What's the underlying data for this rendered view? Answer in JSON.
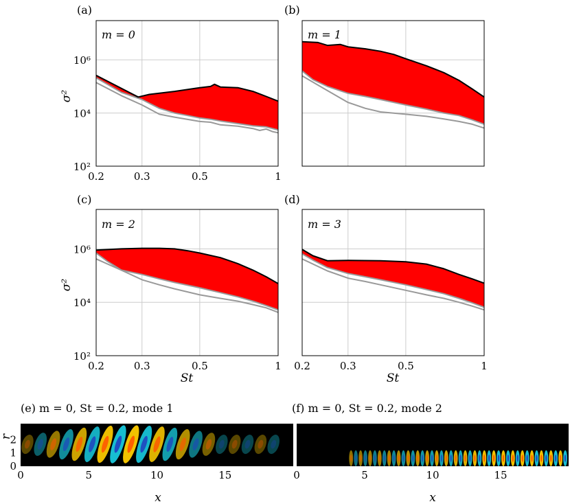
{
  "figure": {
    "y_axis_label": "σ²",
    "x_axis_label": "St",
    "x_ticks": [
      "0.2",
      "0.3",
      "0.5",
      "1"
    ],
    "y_ticks": [
      "10⁶",
      "10⁴",
      "10²"
    ]
  },
  "chart_data": [
    {
      "type": "area",
      "panel": "(a)",
      "label": "m = 0",
      "x_scale": "log",
      "y_scale": "log",
      "xlim": [
        0.2,
        1.0
      ],
      "ylim": [
        100,
        30000000
      ],
      "x_ticks": [
        0.2,
        0.3,
        0.5,
        1
      ],
      "y_ticks": [
        100,
        10000,
        1000000
      ],
      "xlabel": "",
      "ylabel": "σ²",
      "colors": {
        "fill": "#ff0000",
        "upper": "#000000",
        "lower": "#999999"
      },
      "upper": {
        "x": [
          0.2,
          0.29,
          0.32,
          0.4,
          0.5,
          0.55,
          0.57,
          0.6,
          0.7,
          0.8,
          0.9,
          1.0
        ],
        "y": [
          260000,
          40000,
          50000,
          65000,
          90000,
          100000,
          120000,
          95000,
          90000,
          65000,
          42000,
          28000
        ]
      },
      "lower": {
        "x": [
          0.2,
          0.25,
          0.3,
          0.35,
          0.4,
          0.45,
          0.5,
          0.55,
          0.6,
          0.7,
          0.8,
          0.9,
          1.0
        ],
        "y": [
          210000,
          60000,
          32000,
          15000,
          10000,
          8000,
          6500,
          5800,
          5000,
          4000,
          3300,
          3000,
          2300
        ]
      },
      "gray2": {
        "x": [
          0.2,
          0.25,
          0.3,
          0.35,
          0.4,
          0.5,
          0.55,
          0.6,
          0.7,
          0.8,
          0.85,
          0.9,
          0.95,
          1.0
        ],
        "y": [
          140000,
          45000,
          20000,
          9000,
          7000,
          4800,
          4500,
          3600,
          3200,
          2600,
          2200,
          2500,
          2000,
          1800
        ]
      }
    },
    {
      "type": "area",
      "panel": "(b)",
      "label": "m = 1",
      "x_scale": "log",
      "y_scale": "log",
      "xlim": [
        0.2,
        1.0
      ],
      "ylim": [
        100,
        30000000
      ],
      "x_ticks": [
        0.2,
        0.3,
        0.5,
        1
      ],
      "y_ticks": [
        100,
        10000,
        1000000
      ],
      "xlabel": "",
      "ylabel": "",
      "colors": {
        "fill": "#ff0000",
        "upper": "#000000",
        "lower": "#999999"
      },
      "upper": {
        "x": [
          0.2,
          0.23,
          0.25,
          0.28,
          0.3,
          0.35,
          0.4,
          0.45,
          0.5,
          0.6,
          0.7,
          0.8,
          0.9,
          1.0
        ],
        "y": [
          4800000,
          4500000,
          3500000,
          3800000,
          3100000,
          2600000,
          2100000,
          1600000,
          1100000,
          600000,
          330000,
          170000,
          80000,
          40000
        ]
      },
      "lower": {
        "x": [
          0.2,
          0.22,
          0.25,
          0.3,
          0.35,
          0.4,
          0.5,
          0.6,
          0.7,
          0.8,
          0.9,
          1.0
        ],
        "y": [
          380000,
          180000,
          100000,
          55000,
          42000,
          32000,
          20000,
          14000,
          10000,
          8000,
          5500,
          3800
        ]
      },
      "gray2": {
        "x": [
          0.2,
          0.25,
          0.3,
          0.35,
          0.4,
          0.5,
          0.6,
          0.7,
          0.8,
          0.9,
          1.0
        ],
        "y": [
          250000,
          70000,
          25000,
          15000,
          11000,
          9000,
          7500,
          6000,
          4800,
          3800,
          2700
        ]
      }
    },
    {
      "type": "area",
      "panel": "(c)",
      "label": "m = 2",
      "x_scale": "log",
      "y_scale": "log",
      "xlim": [
        0.2,
        1.0
      ],
      "ylim": [
        100,
        30000000
      ],
      "x_ticks": [
        0.2,
        0.3,
        0.5,
        1
      ],
      "y_ticks": [
        100,
        10000,
        1000000
      ],
      "xlabel": "St",
      "ylabel": "σ²",
      "colors": {
        "fill": "#ff0000",
        "upper": "#000000",
        "lower": "#999999"
      },
      "upper": {
        "x": [
          0.2,
          0.25,
          0.3,
          0.35,
          0.4,
          0.45,
          0.5,
          0.6,
          0.7,
          0.8,
          0.9,
          1.0
        ],
        "y": [
          900000,
          1000000,
          1050000,
          1050000,
          1000000,
          850000,
          700000,
          470000,
          280000,
          160000,
          90000,
          50000
        ]
      },
      "lower": {
        "x": [
          0.2,
          0.22,
          0.25,
          0.3,
          0.35,
          0.4,
          0.5,
          0.6,
          0.7,
          0.8,
          0.9,
          1.0
        ],
        "y": [
          700000,
          350000,
          160000,
          110000,
          75000,
          55000,
          35000,
          23000,
          16000,
          11000,
          7500,
          5200
        ]
      },
      "gray2": {
        "x": [
          0.2,
          0.25,
          0.3,
          0.35,
          0.4,
          0.5,
          0.6,
          0.7,
          0.8,
          0.9,
          1.0
        ],
        "y": [
          420000,
          160000,
          70000,
          45000,
          32000,
          19000,
          14000,
          11000,
          8200,
          6200,
          4200
        ]
      }
    },
    {
      "type": "area",
      "panel": "(d)",
      "label": "m = 3",
      "x_scale": "log",
      "y_scale": "log",
      "xlim": [
        0.2,
        1.0
      ],
      "ylim": [
        100,
        30000000
      ],
      "x_ticks": [
        0.2,
        0.3,
        0.5,
        1
      ],
      "y_ticks": [
        100,
        10000,
        1000000
      ],
      "xlabel": "St",
      "ylabel": "",
      "colors": {
        "fill": "#ff0000",
        "upper": "#000000",
        "lower": "#999999"
      },
      "upper": {
        "x": [
          0.2,
          0.22,
          0.25,
          0.3,
          0.4,
          0.5,
          0.6,
          0.7,
          0.8,
          0.9,
          1.0
        ],
        "y": [
          950000,
          550000,
          360000,
          370000,
          360000,
          330000,
          270000,
          180000,
          110000,
          75000,
          52000
        ]
      },
      "lower": {
        "x": [
          0.2,
          0.22,
          0.25,
          0.3,
          0.35,
          0.4,
          0.5,
          0.6,
          0.7,
          0.8,
          0.9,
          1.0
        ],
        "y": [
          650000,
          380000,
          200000,
          120000,
          90000,
          70000,
          45000,
          30000,
          21000,
          14000,
          9500,
          6500
        ]
      },
      "gray2": {
        "x": [
          0.2,
          0.25,
          0.3,
          0.35,
          0.4,
          0.5,
          0.6,
          0.7,
          0.8,
          0.9,
          1.0
        ],
        "y": [
          420000,
          150000,
          80000,
          60000,
          45000,
          28000,
          19000,
          14000,
          10000,
          7200,
          5200
        ]
      }
    },
    {
      "type": "heatmap",
      "panel": "(e)",
      "title": "(e) m = 0, St = 0.2, mode 1",
      "xlabel": "x",
      "ylabel": "r",
      "xlim": [
        0,
        20
      ],
      "ylim": [
        0,
        3.2
      ],
      "x_ticks": [
        0,
        5,
        10,
        15
      ],
      "y_ticks": [
        0,
        1,
        2
      ],
      "wave": {
        "start": 0.5,
        "end": 19,
        "wavelength": 1.9,
        "radial_extent": 3,
        "tilt": -0.5
      }
    },
    {
      "type": "heatmap",
      "panel": "(f)",
      "title": "(f) m = 0, St = 0.2, mode 2",
      "xlabel": "x",
      "ylabel": "",
      "xlim": [
        0,
        20
      ],
      "ylim": [
        0,
        3.2
      ],
      "x_ticks": [
        0,
        5,
        10,
        15
      ],
      "y_ticks": [],
      "wave": {
        "start": 4,
        "end": 20,
        "wavelength": 0.7,
        "radial_extent": 1.2,
        "tilt": 0
      }
    }
  ]
}
